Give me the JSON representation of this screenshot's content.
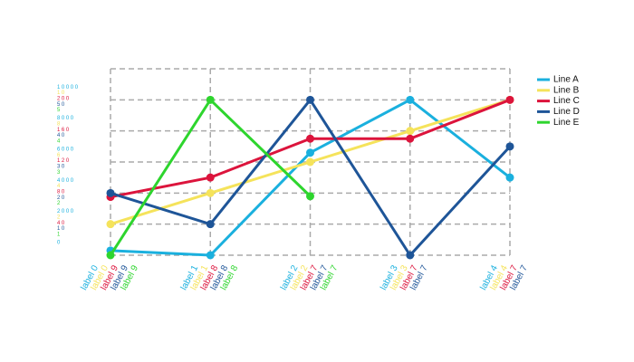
{
  "chart_data": {
    "type": "line",
    "grid": true,
    "legend": "top-right",
    "series": [
      {
        "name": "Line A",
        "color": "#1ab0de",
        "categories": [
          "label 0",
          "label 1",
          "label 2",
          "label 3",
          "label 4"
        ],
        "values": [
          300,
          0,
          6600,
          10000,
          5000
        ],
        "ylim": [
          0,
          12000
        ],
        "yticks": [
          0,
          2000,
          4000,
          6000,
          8000,
          10000
        ]
      },
      {
        "name": "Line B",
        "color": "#f5e35b",
        "categories": [
          "label 0",
          "label 1",
          "label 2",
          "label 3",
          "label 4"
        ],
        "values": [
          2,
          4,
          6,
          8,
          10
        ],
        "ylim": [
          0,
          12
        ],
        "yticks": [
          2,
          4,
          6,
          8,
          10
        ]
      },
      {
        "name": "Line C",
        "color": "#dc143c",
        "categories": [
          "label 9",
          "label 8",
          "label 7",
          "label 7",
          "label 7"
        ],
        "values": [
          75,
          100,
          150,
          150,
          200
        ],
        "ylim": [
          0,
          240
        ],
        "yticks": [
          40,
          80,
          120,
          160,
          200
        ]
      },
      {
        "name": "Line D",
        "color": "#1e5598",
        "categories": [
          "label 9",
          "label 8",
          "label 7",
          "label 7",
          "label 7"
        ],
        "values": [
          20,
          10,
          50,
          0,
          35
        ],
        "ylim": [
          0,
          60
        ],
        "yticks": [
          10,
          20,
          30,
          40,
          50
        ]
      },
      {
        "name": "Line E",
        "color": "#2ed52e",
        "categories": [
          "label 9",
          "label 8",
          "label 7"
        ],
        "values": [
          0,
          5,
          1.9
        ],
        "ylim": [
          0,
          6
        ],
        "yticks": [
          1,
          2,
          3,
          4,
          5
        ]
      }
    ]
  }
}
